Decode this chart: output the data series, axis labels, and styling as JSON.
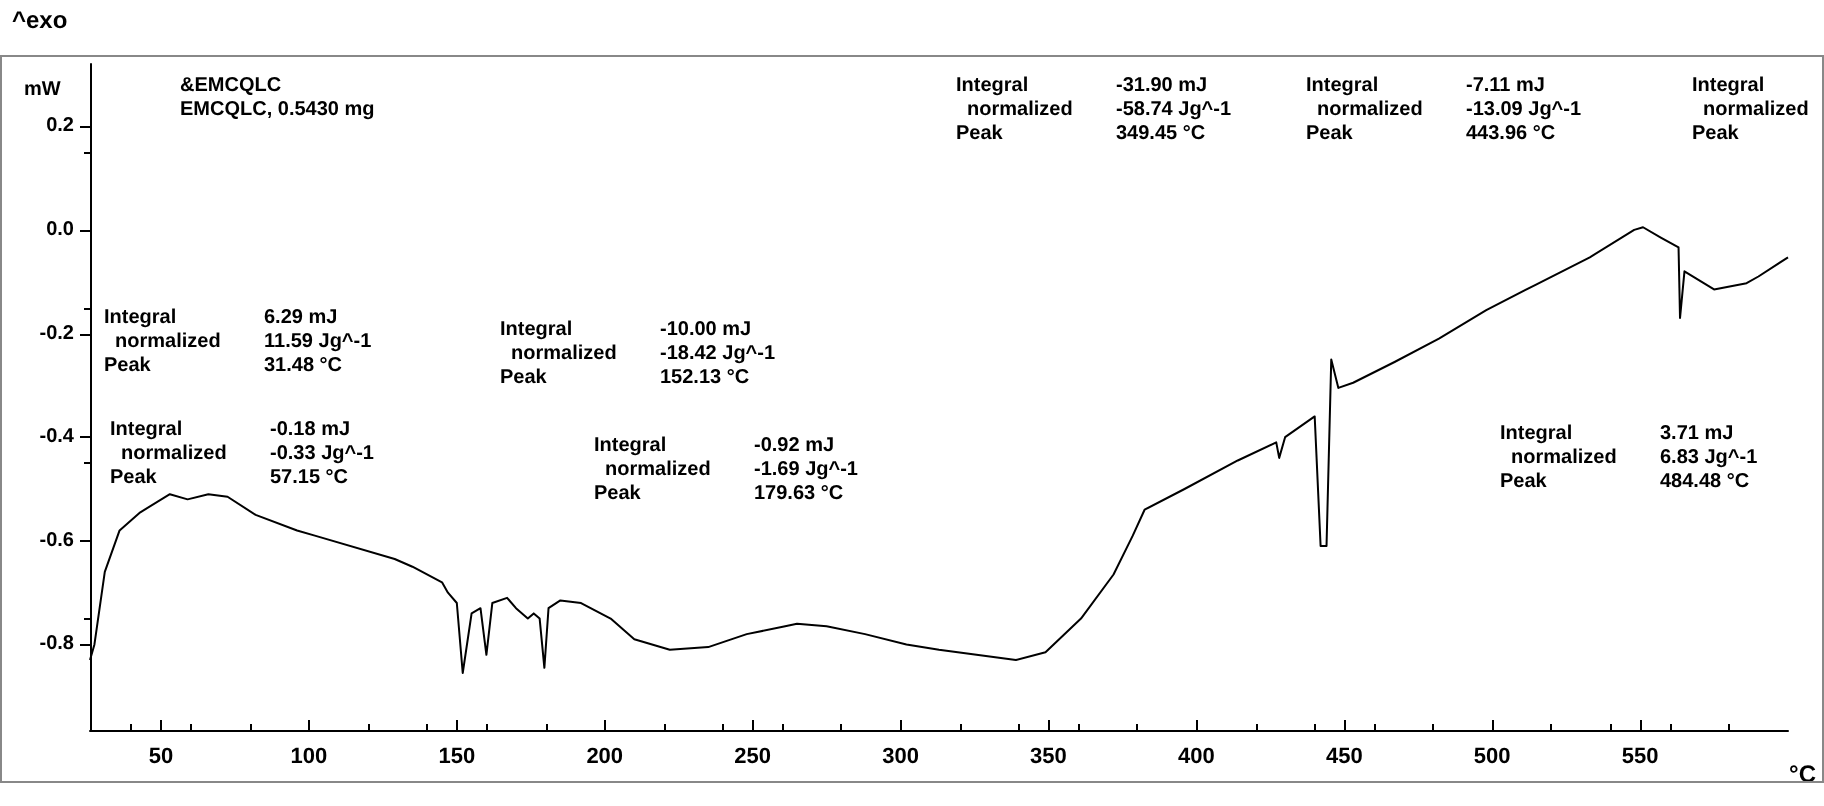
{
  "chart_data": {
    "type": "line",
    "xlabel": "°C",
    "ylabel": "mW",
    "annotations": [
      "^exo",
      "&EMCQLC\nEMCQLC, 0.5430 mg",
      "Integral\t6.29 mJ\n  normalized\t11.59 Jg^-1\nPeak\t31.48 °C",
      "Integral\t-0.18 mJ\n  normalized\t-0.33 Jg^-1\nPeak\t57.15 °C",
      "Integral\t-10.00 mJ\n  normalized\t-18.42 Jg^-1\nPeak\t152.13 °C",
      "Integral\t-0.92 mJ\n  normalized\t-1.69 Jg^-1\nPeak\t179.63 °C",
      "Integral\t-31.90 mJ\n  normalized\t-58.74 Jg^-1\nPeak\t349.45 °C",
      "Integral\t-7.11 mJ\n  normalized\t-13.09 Jg^-1\nPeak\t443.96 °C",
      "Integral\t3.71 mJ\n  normalized\t6.83 Jg^-1\nPeak\t484.48 °C",
      "Integral\n  normalized\nPeak"
    ],
    "x": [
      26,
      27.5,
      31,
      36,
      43,
      53,
      59,
      66,
      72.5,
      82,
      96,
      102,
      129,
      135,
      145,
      147,
      150,
      152,
      155,
      158,
      160,
      162,
      167,
      170,
      174,
      176,
      178,
      179.6,
      181,
      185,
      192,
      202,
      210,
      222,
      235,
      248,
      261,
      265,
      275,
      288,
      302,
      313,
      339,
      349,
      361,
      372,
      378.5,
      382.5,
      396,
      414,
      427,
      428,
      430,
      440,
      442,
      444,
      445.6,
      448,
      453,
      467,
      482,
      498,
      515,
      533,
      548,
      551,
      557,
      563,
      563.5,
      565,
      575,
      586,
      590,
      600
    ],
    "series": [
      {
        "color": "#000000",
        "values": [
          -0.83,
          -0.8,
          -0.66,
          -0.58,
          -0.545,
          -0.51,
          -0.52,
          -0.51,
          -0.515,
          -0.55,
          -0.58,
          -0.59,
          -0.635,
          -0.65,
          -0.68,
          -0.7,
          -0.72,
          -0.855,
          -0.74,
          -0.73,
          -0.82,
          -0.72,
          -0.71,
          -0.73,
          -0.75,
          -0.74,
          -0.75,
          -0.845,
          -0.73,
          -0.715,
          -0.72,
          -0.75,
          -0.79,
          -0.81,
          -0.805,
          -0.78,
          -0.765,
          -0.76,
          -0.765,
          -0.78,
          -0.8,
          -0.81,
          -0.83,
          -0.815,
          -0.75,
          -0.665,
          -0.59,
          -0.54,
          -0.5,
          -0.445,
          -0.41,
          -0.44,
          -0.4,
          -0.36,
          -0.61,
          -0.61,
          -0.25,
          -0.305,
          -0.295,
          -0.255,
          -0.21,
          -0.155,
          -0.105,
          -0.053,
          0,
          0.005,
          -0.015,
          -0.034,
          -0.17,
          -0.08,
          -0.115,
          -0.103,
          -0.09,
          -0.053
        ]
      }
    ],
    "xlim": [
      26,
      600
    ],
    "xticks": [
      50,
      100,
      150,
      200,
      250,
      300,
      350,
      400,
      450,
      500,
      550
    ],
    "ylim": [
      -0.965,
      0.32
    ],
    "yticks": [
      0.2,
      {
        "value": 0,
        "label": "0.0"
      },
      -0.2,
      -0.4,
      -0.6,
      -0.8
    ],
    "grid": false,
    "marker": "none",
    "line_style": "solid"
  }
}
